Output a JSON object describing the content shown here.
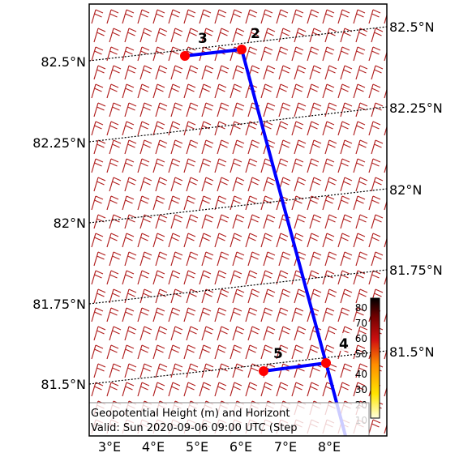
{
  "map": {
    "left_lat_labels": [
      "82.5°N",
      "82.25°N",
      "82°N",
      "81.75°N",
      "81.5°N"
    ],
    "right_lat_labels": [
      "82.5°N",
      "82.25°N",
      "82°N",
      "81.75°N",
      "81.5°N"
    ],
    "lon_labels": [
      "3°E",
      "4°E",
      "5°E",
      "6°E",
      "7°E",
      "8°E"
    ],
    "colors": {
      "barb": "#b22222",
      "route": "#0000ff",
      "waypoint": "#ff0000",
      "gridline": "#000000"
    },
    "route": {
      "waypoints": [
        {
          "label": "2",
          "lon": 5.85,
          "lat": 82.54
        },
        {
          "label": "3",
          "lon": 4.75,
          "lat": 82.52
        },
        {
          "label": "4",
          "lon": 7.55,
          "lat": 81.57
        },
        {
          "label": "5",
          "lon": 6.25,
          "lat": 81.54
        }
      ]
    },
    "colorbar": {
      "ticks": [
        "80",
        "70",
        "60",
        "50",
        "40",
        "30",
        "20",
        "10"
      ],
      "colors": [
        "#fffacd",
        "#ffd700",
        "#ff8c00",
        "#ff4500",
        "#c00000",
        "#800000",
        "#400000",
        "#000000"
      ]
    },
    "info": {
      "line1": "Geopotential Height (m) and Horizont",
      "line2": "Valid: Sun 2020-09-06 09:00 UTC (Step"
    }
  }
}
